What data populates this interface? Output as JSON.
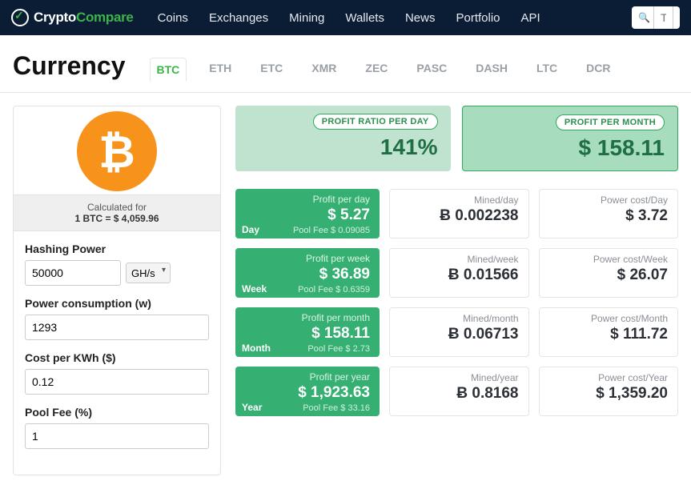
{
  "brand": {
    "name_a": "Crypto",
    "name_b": "Compare"
  },
  "nav": {
    "items": [
      "Coins",
      "Exchanges",
      "Mining",
      "Wallets",
      "News",
      "Portfolio",
      "API"
    ]
  },
  "search": {
    "placeholder": "Type"
  },
  "page_title": "Currency",
  "tabs": [
    "BTC",
    "ETH",
    "ETC",
    "XMR",
    "ZEC",
    "PASC",
    "DASH",
    "LTC",
    "DCR"
  ],
  "active_tab": "BTC",
  "calc": {
    "line1": "Calculated for",
    "line2": "1 BTC = $ 4,059.96"
  },
  "fields": {
    "hash_label": "Hashing Power",
    "hash_value": "50000",
    "hash_unit": "GH/s",
    "power_label": "Power consumption (w)",
    "power_value": "1293",
    "cost_label": "Cost per KWh ($)",
    "cost_value": "0.12",
    "pool_label": "Pool Fee (%)",
    "pool_value": "1"
  },
  "summary": {
    "ratio": {
      "badge": "PROFIT RATIO PER DAY",
      "value": "141%"
    },
    "month": {
      "badge": "PROFIT PER MONTH",
      "value": "$ 158.11"
    }
  },
  "rows": [
    {
      "period": "Day",
      "profit_lbl": "Profit per day",
      "profit": "$ 5.27",
      "fee": "Pool Fee $ 0.09085",
      "mined_lbl": "Mined/day",
      "mined": "Ƀ 0.002238",
      "power_lbl": "Power cost/Day",
      "power": "$ 3.72"
    },
    {
      "period": "Week",
      "profit_lbl": "Profit per week",
      "profit": "$ 36.89",
      "fee": "Pool Fee $ 0.6359",
      "mined_lbl": "Mined/week",
      "mined": "Ƀ 0.01566",
      "power_lbl": "Power cost/Week",
      "power": "$ 26.07"
    },
    {
      "period": "Month",
      "profit_lbl": "Profit per month",
      "profit": "$ 158.11",
      "fee": "Pool Fee $ 2.73",
      "mined_lbl": "Mined/month",
      "mined": "Ƀ 0.06713",
      "power_lbl": "Power cost/Month",
      "power": "$ 111.72"
    },
    {
      "period": "Year",
      "profit_lbl": "Profit per year",
      "profit": "$ 1,923.63",
      "fee": "Pool Fee $ 33.16",
      "mined_lbl": "Mined/year",
      "mined": "Ƀ 0.8168",
      "power_lbl": "Power cost/Year",
      "power": "$ 1,359.20"
    }
  ],
  "colors": {
    "accent": "#35b072",
    "brand_green": "#39b54a",
    "btc_orange": "#f7931a"
  }
}
